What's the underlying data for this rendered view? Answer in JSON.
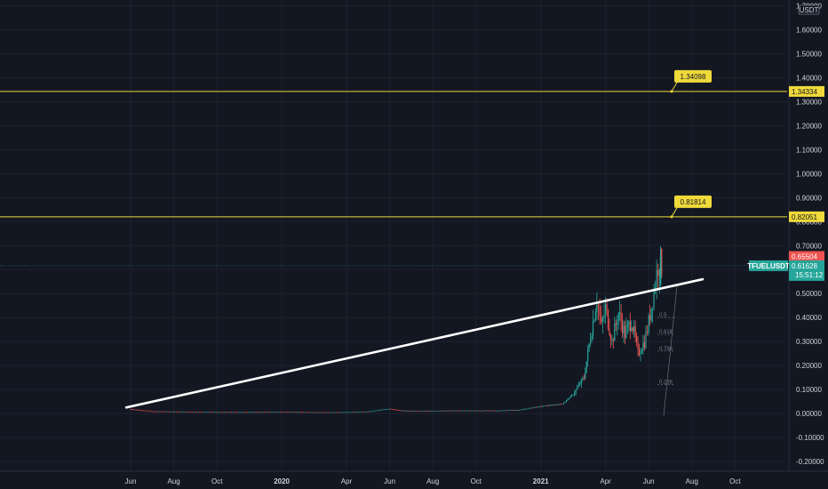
{
  "chart_data": {
    "type": "candlestick",
    "symbol": "TFUELUSDT",
    "currency_unit": "USDT",
    "last_price": "0.61628",
    "countdown": "15:51:12",
    "high_marker": "0.65504",
    "ylim": [
      -0.24,
      1.7
    ],
    "y_ticks": [
      "1.70000",
      "1.60000",
      "1.50000",
      "1.40000",
      "1.30000",
      "1.20000",
      "1.10000",
      "1.00000",
      "0.90000",
      "0.80000",
      "0.70000",
      "0.60000",
      "0.50000",
      "0.40000",
      "0.30000",
      "0.20000",
      "0.10000",
      "0.00000",
      "-0.10000",
      "-0.20000"
    ],
    "y_tick_values": [
      1.7,
      1.6,
      1.5,
      1.4,
      1.3,
      1.2,
      1.1,
      1.0,
      0.9,
      0.8,
      0.7,
      0.6,
      0.5,
      0.4,
      0.3,
      0.2,
      0.1,
      0.0,
      -0.1,
      -0.2
    ],
    "x_ticks": [
      {
        "label": "Jun",
        "t": 0,
        "year": false
      },
      {
        "label": "Aug",
        "t": 2,
        "year": false
      },
      {
        "label": "Oct",
        "t": 4,
        "year": false
      },
      {
        "label": "2020",
        "t": 7,
        "year": true
      },
      {
        "label": "Apr",
        "t": 10,
        "year": false
      },
      {
        "label": "Jun",
        "t": 12,
        "year": false
      },
      {
        "label": "Aug",
        "t": 14,
        "year": false
      },
      {
        "label": "Oct",
        "t": 16,
        "year": false
      },
      {
        "label": "2021",
        "t": 19,
        "year": true
      },
      {
        "label": "Apr",
        "t": 22,
        "year": false
      },
      {
        "label": "Jun",
        "t": 24,
        "year": false
      },
      {
        "label": "Aug",
        "t": 26,
        "year": false
      },
      {
        "label": "Oct",
        "t": 28,
        "year": false
      }
    ],
    "horizontal_levels": [
      {
        "value": 1.34334,
        "label": "1.34334",
        "callout": "1.34098",
        "color": "#f0d93a"
      },
      {
        "value": 0.82051,
        "label": "0.82051",
        "callout": "0.81814",
        "color": "#f0d93a"
      }
    ],
    "trendline": {
      "start": {
        "t": -0.2,
        "v": 0.025
      },
      "end": {
        "t": 26.5,
        "v": 0.56
      },
      "color": "#ffffff"
    },
    "fib_labels": [
      "0.5",
      "0.618",
      "0.786",
      "0.236"
    ],
    "series": [
      {
        "t": 0,
        "v": 0.018
      },
      {
        "t": 1,
        "v": 0.009
      },
      {
        "t": 2,
        "v": 0.008
      },
      {
        "t": 3,
        "v": 0.007
      },
      {
        "t": 4,
        "v": 0.006
      },
      {
        "t": 5,
        "v": 0.006
      },
      {
        "t": 6,
        "v": 0.006
      },
      {
        "t": 7,
        "v": 0.007
      },
      {
        "t": 8,
        "v": 0.006
      },
      {
        "t": 9,
        "v": 0.005
      },
      {
        "t": 10,
        "v": 0.006
      },
      {
        "t": 11,
        "v": 0.008
      },
      {
        "t": 12,
        "v": 0.02
      },
      {
        "t": 12.5,
        "v": 0.012
      },
      {
        "t": 13,
        "v": 0.011
      },
      {
        "t": 14,
        "v": 0.011
      },
      {
        "t": 15,
        "v": 0.012
      },
      {
        "t": 16,
        "v": 0.012
      },
      {
        "t": 17,
        "v": 0.012
      },
      {
        "t": 18,
        "v": 0.015
      },
      {
        "t": 19,
        "v": 0.03
      },
      {
        "t": 19.5,
        "v": 0.035
      },
      {
        "t": 20,
        "v": 0.04
      },
      {
        "t": 20.5,
        "v": 0.08
      },
      {
        "t": 21,
        "v": 0.15
      },
      {
        "t": 21.3,
        "v": 0.32
      },
      {
        "t": 21.6,
        "v": 0.48
      },
      {
        "t": 21.8,
        "v": 0.36
      },
      {
        "t": 22,
        "v": 0.44
      },
      {
        "t": 22.3,
        "v": 0.3
      },
      {
        "t": 22.6,
        "v": 0.42
      },
      {
        "t": 22.9,
        "v": 0.33
      },
      {
        "t": 23.2,
        "v": 0.39
      },
      {
        "t": 23.5,
        "v": 0.25
      },
      {
        "t": 23.8,
        "v": 0.3
      },
      {
        "t": 24,
        "v": 0.38
      },
      {
        "t": 24.3,
        "v": 0.55
      },
      {
        "t": 24.5,
        "v": 0.65
      },
      {
        "t": 24.6,
        "v": 0.616
      }
    ]
  }
}
